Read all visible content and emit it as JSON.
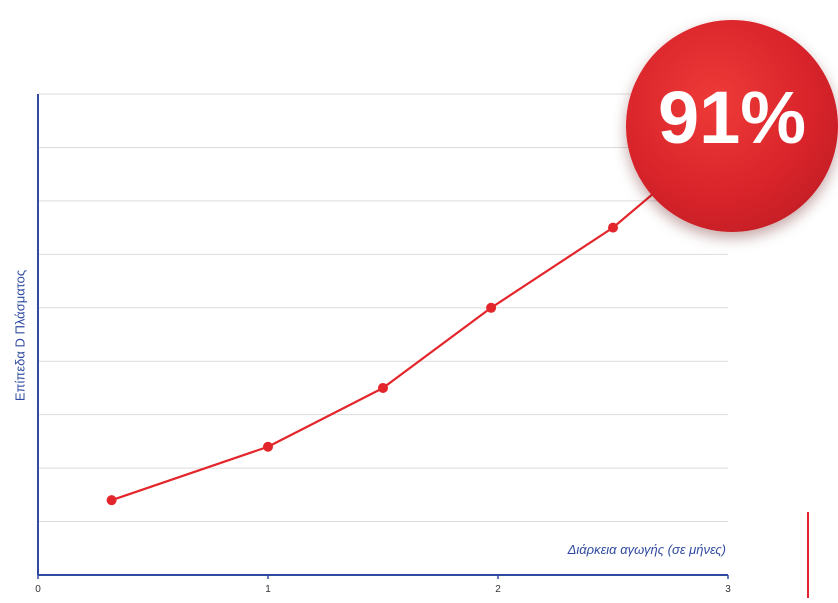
{
  "chart_data": {
    "type": "line",
    "xlabel": "Διάρκεια αγωγής (σε μήνες)",
    "ylabel": "Επίπεδα D Πλάσματος",
    "xticks": [
      "0",
      "1",
      "2",
      "3"
    ],
    "xlim": [
      0,
      3
    ],
    "ylim": [
      0,
      9
    ],
    "grid": true,
    "series": [
      {
        "x": [
          0.32,
          1.0,
          1.5,
          1.97,
          2.5,
          2.72
        ],
        "y": [
          1.4,
          2.4,
          3.5,
          5.0,
          6.5,
          7.3
        ],
        "markers": [
          true,
          true,
          true,
          true,
          true,
          false
        ],
        "color": "#e3262b"
      }
    ],
    "badge": {
      "text": "91%",
      "color": "#d8232a"
    },
    "axis_color": "#2f4aa0",
    "grid_color": "#dcdcdc"
  }
}
